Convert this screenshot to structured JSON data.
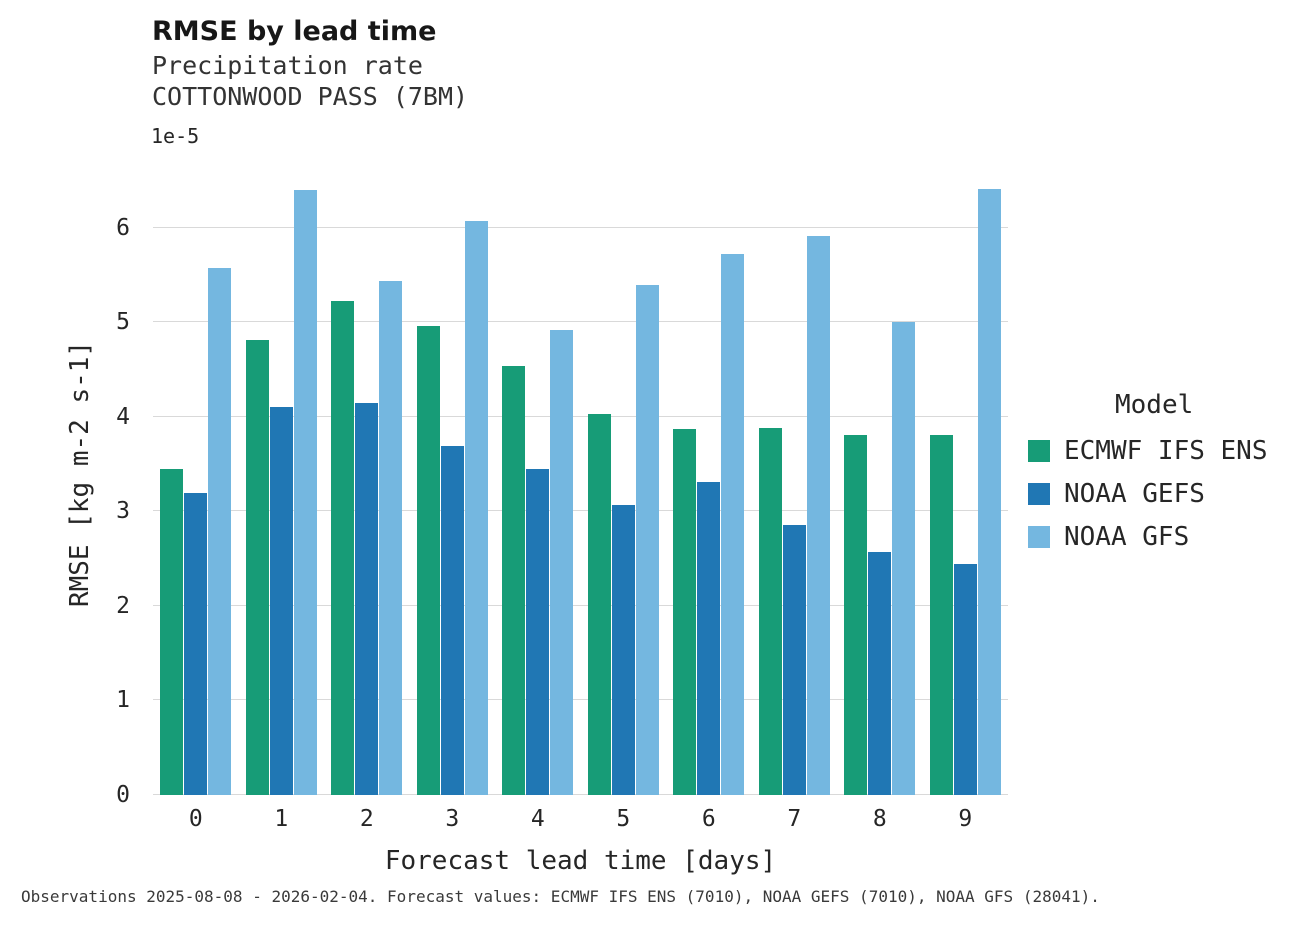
{
  "header": {
    "title": "RMSE by lead time",
    "subtitle1": "Precipitation rate",
    "subtitle2": "COTTONWOOD PASS (7BM)"
  },
  "legend": {
    "title": "Model"
  },
  "footer": {
    "caption": "Observations 2025-08-08 - 2026-02-04. Forecast values: ECMWF IFS ENS (7010), NOAA GEFS (7010), NOAA GFS (28041)."
  },
  "chart_data": {
    "type": "bar",
    "title": "RMSE by lead time",
    "subtitle": "Precipitation rate — COTTONWOOD PASS (7BM)",
    "categories": [
      "0",
      "1",
      "2",
      "3",
      "4",
      "5",
      "6",
      "7",
      "8",
      "9"
    ],
    "series": [
      {
        "name": "ECMWF IFS ENS",
        "color": "#179c77",
        "values": [
          3.45,
          4.81,
          5.22,
          4.96,
          4.54,
          4.03,
          3.87,
          3.88,
          3.81,
          3.81
        ]
      },
      {
        "name": "NOAA GEFS",
        "color": "#2077b4",
        "values": [
          3.19,
          4.1,
          4.15,
          3.69,
          3.45,
          3.07,
          3.31,
          2.86,
          2.57,
          2.44
        ]
      },
      {
        "name": "NOAA GFS",
        "color": "#74b7e0",
        "values": [
          5.57,
          6.4,
          5.44,
          6.07,
          4.92,
          5.39,
          5.72,
          5.91,
          5.0,
          6.41
        ]
      }
    ],
    "xlabel": "Forecast lead time [days]",
    "ylabel": "RMSE [kg m-2 s-1]",
    "scale_factor": "1e-5",
    "ylim": [
      0,
      6.8
    ],
    "yticks": [
      0,
      1,
      2,
      3,
      4,
      5,
      6
    ],
    "grid": true,
    "legend_position": "right",
    "legend_title": "Model"
  }
}
